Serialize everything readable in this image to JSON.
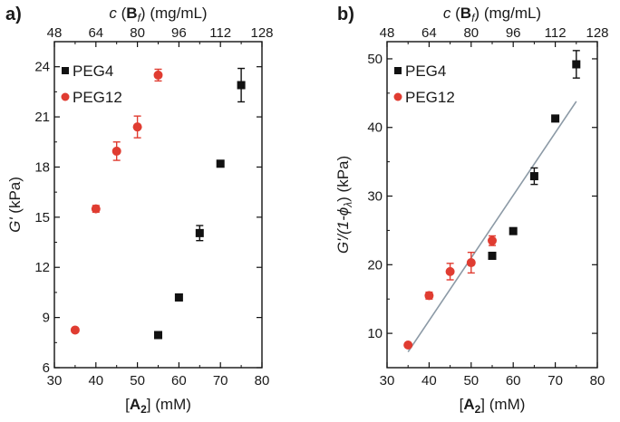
{
  "chart_data": [
    {
      "panel_label": "a)",
      "type": "scatter",
      "xlabel": {
        "bracket_open": "[",
        "main": "A",
        "sub": "2",
        "bracket_close": "]",
        "unit": " (mM)"
      },
      "ylabel": {
        "main": "G'",
        "unit": " (kPa)"
      },
      "top_label": {
        "var": "c",
        "open": " (",
        "main": "B",
        "sub": "f",
        "close": ")",
        "unit": " (mg/mL)"
      },
      "xlim": [
        30,
        80
      ],
      "ylim": [
        6,
        25.5
      ],
      "top_lim": [
        48,
        128
      ],
      "x_ticks": [
        30,
        40,
        50,
        60,
        70,
        80
      ],
      "y_ticks": [
        6,
        9,
        12,
        15,
        18,
        21,
        24
      ],
      "top_ticks": [
        48,
        64,
        80,
        96,
        112,
        128
      ],
      "legend": [
        "PEG4",
        "PEG12"
      ],
      "series": [
        {
          "name": "PEG4",
          "marker": "square",
          "color": "#111111",
          "points": [
            {
              "x": 55,
              "y": 7.95,
              "err": 0
            },
            {
              "x": 60,
              "y": 10.2,
              "err": 0
            },
            {
              "x": 65,
              "y": 14.05,
              "err": 0.45
            },
            {
              "x": 70,
              "y": 18.2,
              "err": 0
            },
            {
              "x": 75,
              "y": 22.9,
              "err": 1.0
            }
          ]
        },
        {
          "name": "PEG12",
          "marker": "circle",
          "color": "#e03c31",
          "points": [
            {
              "x": 35,
              "y": 8.25,
              "err": 0
            },
            {
              "x": 40,
              "y": 15.5,
              "err": 0.2
            },
            {
              "x": 45,
              "y": 18.95,
              "err": 0.55
            },
            {
              "x": 50,
              "y": 20.4,
              "err": 0.65
            },
            {
              "x": 55,
              "y": 23.5,
              "err": 0.35
            }
          ]
        }
      ]
    },
    {
      "panel_label": "b)",
      "type": "scatter",
      "xlabel": {
        "bracket_open": "[",
        "main": "A",
        "sub": "2",
        "bracket_close": "]",
        "unit": " (mM)"
      },
      "ylabel": {
        "main": "G'/(1-ϕ",
        "sub": "λ",
        "unit": ") (kPa)"
      },
      "top_label": {
        "var": "c",
        "open": " (",
        "main": "B",
        "sub": "f",
        "close": ")",
        "unit": " (mg/mL)"
      },
      "xlim": [
        30,
        80
      ],
      "ylim": [
        5,
        52.5
      ],
      "top_lim": [
        48,
        128
      ],
      "x_ticks": [
        30,
        40,
        50,
        60,
        70,
        80
      ],
      "y_ticks": [
        10,
        20,
        30,
        40,
        50
      ],
      "top_ticks": [
        48,
        64,
        80,
        96,
        112,
        128
      ],
      "legend": [
        "PEG4",
        "PEG12"
      ],
      "fit_line": {
        "x": [
          35,
          75
        ],
        "y": [
          7.3,
          43.8
        ],
        "color": "#8c9aa6"
      },
      "series": [
        {
          "name": "PEG4",
          "marker": "square",
          "color": "#111111",
          "points": [
            {
              "x": 55,
              "y": 21.3,
              "err": 0
            },
            {
              "x": 60,
              "y": 24.9,
              "err": 0
            },
            {
              "x": 65,
              "y": 32.9,
              "err": 1.2
            },
            {
              "x": 70,
              "y": 41.3,
              "err": 0
            },
            {
              "x": 75,
              "y": 49.2,
              "err": 2.0
            }
          ]
        },
        {
          "name": "PEG12",
          "marker": "circle",
          "color": "#e03c31",
          "points": [
            {
              "x": 35,
              "y": 8.3,
              "err": 0
            },
            {
              "x": 40,
              "y": 15.5,
              "err": 0.5
            },
            {
              "x": 45,
              "y": 19.0,
              "err": 1.2
            },
            {
              "x": 50,
              "y": 20.3,
              "err": 1.5
            },
            {
              "x": 55,
              "y": 23.5,
              "err": 0.7
            }
          ]
        }
      ]
    }
  ]
}
